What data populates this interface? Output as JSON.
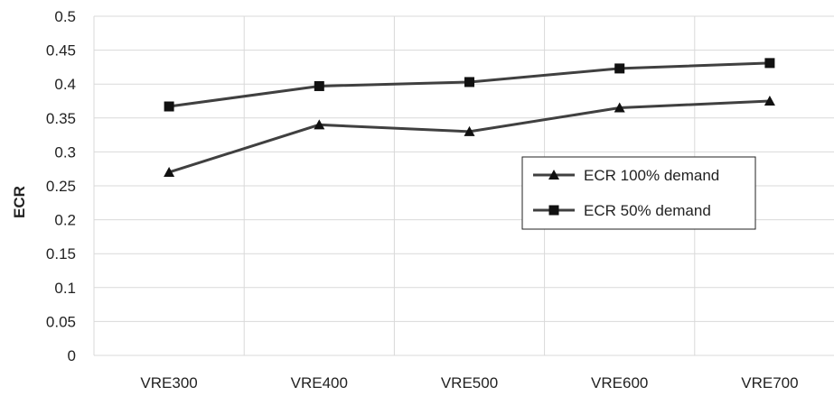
{
  "chart_data": {
    "type": "line",
    "categories": [
      "VRE300",
      "VRE400",
      "VRE500",
      "VRE600",
      "VRE700"
    ],
    "series": [
      {
        "name": "ECR 100% demand",
        "marker": "triangle",
        "values": [
          0.27,
          0.34,
          0.33,
          0.365,
          0.375
        ]
      },
      {
        "name": "ECR 50% demand",
        "marker": "square",
        "values": [
          0.367,
          0.397,
          0.403,
          0.423,
          0.431
        ]
      }
    ],
    "xlabel": "",
    "ylabel": "ECR",
    "ylim": [
      0,
      0.5
    ],
    "yticks": [
      0,
      0.05,
      0.1,
      0.15,
      0.2,
      0.25,
      0.3,
      0.35,
      0.4,
      0.45,
      0.5
    ],
    "ytick_labels": [
      "0",
      "0.05",
      "0.1",
      "0.15",
      "0.2",
      "0.25",
      "0.3",
      "0.35",
      "0.4",
      "0.45",
      "0.5"
    ],
    "grid": true,
    "legend_position": "right",
    "colors": {
      "line": "#404040",
      "grid": "#d9d9d9",
      "text": "#222222"
    }
  }
}
